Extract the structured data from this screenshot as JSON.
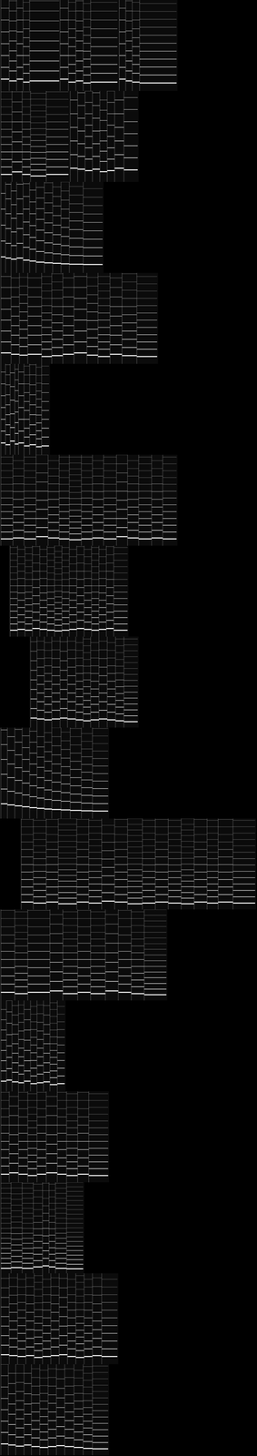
{
  "chart_data": [
    {
      "type": "spectrogram",
      "color": "#ffffff",
      "grid": false,
      "tick_labels": false,
      "xlim": [
        0,
        27.8
      ],
      "ylim": [
        0,
        4000
      ],
      "start": 0,
      "end": 19.2,
      "notes": [
        [
          0.1,
          1.0,
          520
        ],
        [
          1.0,
          1.8,
          440
        ],
        [
          1.8,
          2.5,
          520
        ],
        [
          2.5,
          3.2,
          390
        ],
        [
          3.2,
          6.4,
          440
        ],
        [
          6.5,
          7.4,
          520
        ],
        [
          7.4,
          8.2,
          390
        ],
        [
          8.2,
          9.0,
          440
        ],
        [
          9.0,
          9.8,
          350
        ],
        [
          9.8,
          12.7,
          390
        ],
        [
          12.9,
          13.6,
          520
        ],
        [
          13.6,
          14.3,
          440
        ],
        [
          14.3,
          15.1,
          390
        ],
        [
          15.1,
          19.1,
          350
        ]
      ]
    },
    {
      "type": "spectrogram",
      "color": "#ffffff",
      "grid": false,
      "tick_labels": false,
      "xlim": [
        0,
        27.8
      ],
      "ylim": [
        0,
        4000
      ],
      "start": 0,
      "end": 15.0,
      "notes": [
        [
          0.1,
          1.3,
          330
        ],
        [
          1.3,
          2.4,
          440
        ],
        [
          2.4,
          3.3,
          330
        ],
        [
          3.3,
          5.0,
          260
        ],
        [
          5.0,
          7.4,
          330
        ],
        [
          7.6,
          8.4,
          600
        ],
        [
          8.4,
          9.2,
          560
        ],
        [
          9.2,
          10.0,
          500
        ],
        [
          10.0,
          10.8,
          560
        ],
        [
          10.8,
          11.6,
          450
        ],
        [
          11.6,
          12.4,
          500
        ],
        [
          12.4,
          13.4,
          600
        ],
        [
          13.4,
          14.9,
          530
        ]
      ]
    },
    {
      "type": "spectrogram",
      "color": "#ffffff",
      "grid": false,
      "tick_labels": false,
      "xlim": [
        0,
        27.8
      ],
      "ylim": [
        0,
        4000
      ],
      "start": 0,
      "end": 11.2,
      "notes": [
        [
          0.1,
          0.6,
          700
        ],
        [
          0.6,
          1.2,
          650
        ],
        [
          1.2,
          1.8,
          600
        ],
        [
          1.8,
          2.5,
          650
        ],
        [
          2.5,
          3.2,
          560
        ],
        [
          3.2,
          3.9,
          520
        ],
        [
          3.9,
          4.8,
          470
        ],
        [
          4.8,
          5.7,
          440
        ],
        [
          5.7,
          6.6,
          420
        ],
        [
          6.6,
          7.5,
          400
        ],
        [
          7.5,
          9.0,
          380
        ],
        [
          9.0,
          11.1,
          370
        ]
      ]
    },
    {
      "type": "spectrogram",
      "color": "#ffffff",
      "grid": false,
      "tick_labels": false,
      "xlim": [
        0,
        27.8
      ],
      "ylim": [
        0,
        4000
      ],
      "start": 0,
      "end": 17.1,
      "notes": [
        [
          0.1,
          1.2,
          480
        ],
        [
          1.2,
          2.1,
          420
        ],
        [
          2.1,
          3.0,
          380
        ],
        [
          3.0,
          4.5,
          420
        ],
        [
          4.5,
          5.6,
          320
        ],
        [
          5.6,
          6.8,
          360
        ],
        [
          6.8,
          8.0,
          420
        ],
        [
          8.0,
          9.4,
          480
        ],
        [
          9.4,
          10.6,
          380
        ],
        [
          10.6,
          11.9,
          320
        ],
        [
          11.9,
          13.2,
          420
        ],
        [
          13.2,
          14.8,
          360
        ],
        [
          14.8,
          17.0,
          320
        ]
      ]
    },
    {
      "type": "spectrogram",
      "color": "#ffffff",
      "grid": false,
      "tick_labels": false,
      "xlim": [
        0,
        27.8
      ],
      "ylim": [
        0,
        4000
      ],
      "start": 0,
      "end": 5.4,
      "notes": [
        [
          0.1,
          0.6,
          520
        ],
        [
          0.6,
          1.1,
          440
        ],
        [
          1.1,
          1.6,
          600
        ],
        [
          1.6,
          2.0,
          470
        ],
        [
          2.0,
          2.6,
          520
        ],
        [
          2.6,
          3.2,
          390
        ],
        [
          3.2,
          3.9,
          440
        ],
        [
          3.9,
          4.5,
          350
        ],
        [
          4.5,
          5.3,
          390
        ]
      ]
    },
    {
      "type": "spectrogram",
      "color": "#ffffff",
      "grid": false,
      "tick_labels": false,
      "xlim": [
        0,
        27.8
      ],
      "ylim": [
        0,
        4000
      ],
      "start": 0,
      "end": 19.2,
      "notes": [
        [
          0.1,
          1.4,
          300
        ],
        [
          1.4,
          2.6,
          340
        ],
        [
          2.6,
          3.9,
          300
        ],
        [
          3.9,
          5.2,
          400
        ],
        [
          5.2,
          6.4,
          340
        ],
        [
          6.4,
          7.5,
          300
        ],
        [
          7.5,
          8.8,
          260
        ],
        [
          8.8,
          10.0,
          300
        ],
        [
          10.0,
          11.2,
          340
        ],
        [
          11.2,
          12.6,
          300
        ],
        [
          12.6,
          13.8,
          400
        ],
        [
          13.8,
          15.0,
          340
        ],
        [
          15.0,
          16.4,
          300
        ],
        [
          16.4,
          17.6,
          340
        ],
        [
          17.6,
          19.1,
          300
        ]
      ]
    },
    {
      "type": "spectrogram",
      "color": "#ffffff",
      "grid": false,
      "tick_labels": false,
      "xlim": [
        0,
        27.8
      ],
      "ylim": [
        0,
        4000
      ],
      "start": 1.0,
      "end": 13.9,
      "notes": [
        [
          1.1,
          1.9,
          280
        ],
        [
          1.9,
          2.7,
          320
        ],
        [
          2.7,
          3.5,
          280
        ],
        [
          3.5,
          4.3,
          360
        ],
        [
          4.3,
          5.1,
          320
        ],
        [
          5.1,
          5.9,
          280
        ],
        [
          5.9,
          6.7,
          250
        ],
        [
          6.7,
          7.5,
          280
        ],
        [
          7.5,
          8.3,
          320
        ],
        [
          8.3,
          9.1,
          360
        ],
        [
          9.1,
          9.9,
          320
        ],
        [
          9.9,
          10.7,
          280
        ],
        [
          10.7,
          11.5,
          320
        ],
        [
          11.5,
          12.3,
          360
        ],
        [
          12.3,
          13.8,
          280
        ]
      ]
    },
    {
      "type": "spectrogram",
      "color": "#ffffff",
      "grid": false,
      "tick_labels": false,
      "xlim": [
        0,
        27.8
      ],
      "ylim": [
        0,
        4000
      ],
      "start": 3.2,
      "end": 15.0,
      "notes": [
        [
          3.3,
          4.0,
          420
        ],
        [
          4.0,
          4.8,
          380
        ],
        [
          4.8,
          5.6,
          340
        ],
        [
          5.6,
          6.5,
          380
        ],
        [
          6.5,
          7.3,
          420
        ],
        [
          7.3,
          8.2,
          380
        ],
        [
          8.2,
          9.0,
          340
        ],
        [
          9.0,
          9.8,
          300
        ],
        [
          9.8,
          10.7,
          340
        ],
        [
          10.7,
          11.6,
          380
        ],
        [
          11.6,
          12.5,
          340
        ],
        [
          12.5,
          13.4,
          300
        ],
        [
          13.4,
          14.9,
          260
        ]
      ]
    },
    {
      "type": "spectrogram",
      "color": "#ffffff",
      "grid": false,
      "tick_labels": false,
      "xlim": [
        0,
        27.8
      ],
      "ylim": [
        0,
        4000
      ],
      "start": 0,
      "end": 11.8,
      "notes": [
        [
          0.1,
          0.8,
          650
        ],
        [
          0.8,
          1.6,
          600
        ],
        [
          1.6,
          2.4,
          560
        ],
        [
          2.4,
          3.2,
          520
        ],
        [
          3.2,
          4.0,
          480
        ],
        [
          4.0,
          4.8,
          450
        ],
        [
          4.8,
          5.6,
          420
        ],
        [
          5.6,
          6.6,
          400
        ],
        [
          6.6,
          7.6,
          380
        ],
        [
          7.6,
          8.8,
          360
        ],
        [
          8.8,
          10.0,
          340
        ],
        [
          10.0,
          11.7,
          330
        ]
      ]
    },
    {
      "type": "spectrogram",
      "color": "#ffffff",
      "grid": false,
      "tick_labels": false,
      "xlim": [
        0,
        27.8
      ],
      "ylim": [
        0,
        4000
      ],
      "start": 2.2,
      "end": 27.7,
      "notes": [
        [
          2.3,
          3.6,
          330
        ],
        [
          3.6,
          5.0,
          280
        ],
        [
          5.0,
          6.3,
          330
        ],
        [
          6.3,
          8.3,
          250
        ],
        [
          8.3,
          9.6,
          330
        ],
        [
          9.6,
          11.0,
          280
        ],
        [
          11.0,
          12.4,
          370
        ],
        [
          12.4,
          13.8,
          330
        ],
        [
          13.8,
          15.4,
          250
        ],
        [
          15.4,
          16.8,
          280
        ],
        [
          16.8,
          18.2,
          330
        ],
        [
          18.2,
          19.6,
          280
        ],
        [
          19.6,
          21.0,
          250
        ],
        [
          21.0,
          22.4,
          330
        ],
        [
          22.4,
          23.6,
          280
        ],
        [
          23.6,
          25.2,
          330
        ],
        [
          25.2,
          27.6,
          280
        ]
      ]
    },
    {
      "type": "spectrogram",
      "color": "#ffffff",
      "grid": false,
      "tick_labels": false,
      "xlim": [
        0,
        27.8
      ],
      "ylim": [
        0,
        4000
      ],
      "start": 0,
      "end": 18.1,
      "notes": [
        [
          0.1,
          1.6,
          360
        ],
        [
          1.6,
          3.0,
          300
        ],
        [
          3.0,
          5.4,
          360
        ],
        [
          5.4,
          6.8,
          420
        ],
        [
          6.8,
          8.4,
          300
        ],
        [
          8.4,
          9.8,
          360
        ],
        [
          9.8,
          11.4,
          300
        ],
        [
          11.4,
          12.8,
          420
        ],
        [
          12.8,
          14.2,
          360
        ],
        [
          14.2,
          15.6,
          300
        ],
        [
          15.6,
          18.0,
          250
        ]
      ]
    },
    {
      "type": "spectrogram",
      "color": "#ffffff",
      "grid": false,
      "tick_labels": false,
      "xlim": [
        0,
        27.8
      ],
      "ylim": [
        0,
        4000
      ],
      "start": 0,
      "end": 7.1,
      "notes": [
        [
          0.1,
          0.7,
          450
        ],
        [
          0.7,
          1.3,
          500
        ],
        [
          1.3,
          2.0,
          420
        ],
        [
          2.0,
          2.6,
          380
        ],
        [
          2.6,
          3.3,
          450
        ],
        [
          3.3,
          4.0,
          340
        ],
        [
          4.0,
          4.7,
          380
        ],
        [
          4.7,
          5.4,
          420
        ],
        [
          5.4,
          6.2,
          300
        ],
        [
          6.2,
          7.0,
          340
        ]
      ]
    },
    {
      "type": "spectrogram",
      "color": "#ffffff",
      "grid": false,
      "tick_labels": false,
      "xlim": [
        0,
        27.8
      ],
      "ylim": [
        0,
        4000
      ],
      "start": 0,
      "end": 11.8,
      "notes": [
        [
          0.1,
          1.0,
          360
        ],
        [
          1.0,
          2.0,
          420
        ],
        [
          2.0,
          3.0,
          360
        ],
        [
          3.0,
          4.0,
          300
        ],
        [
          4.0,
          5.0,
          360
        ],
        [
          5.0,
          6.2,
          420
        ],
        [
          6.2,
          7.2,
          360
        ],
        [
          7.2,
          8.4,
          300
        ],
        [
          8.4,
          9.6,
          360
        ],
        [
          9.6,
          11.7,
          300
        ]
      ]
    },
    {
      "type": "spectrogram",
      "color": "#ffffff",
      "grid": false,
      "tick_labels": false,
      "xlim": [
        0,
        27.8
      ],
      "ylim": [
        0,
        4000
      ],
      "start": 0,
      "end": 9.1,
      "notes": [
        [
          0.1,
          1.2,
          220
        ],
        [
          1.2,
          2.4,
          250
        ],
        [
          2.4,
          3.6,
          220
        ],
        [
          3.6,
          4.6,
          280
        ],
        [
          4.6,
          5.3,
          330
        ],
        [
          5.3,
          6.0,
          280
        ],
        [
          6.0,
          7.2,
          220
        ],
        [
          7.2,
          9.0,
          200
        ]
      ]
    },
    {
      "type": "spectrogram",
      "color": "#ffffff",
      "grid": false,
      "tick_labels": false,
      "xlim": [
        0,
        27.8
      ],
      "ylim": [
        0,
        4000
      ],
      "start": 0,
      "end": 12.8,
      "notes": [
        [
          0.1,
          1.0,
          420
        ],
        [
          1.0,
          1.9,
          380
        ],
        [
          1.9,
          2.8,
          340
        ],
        [
          2.8,
          3.7,
          380
        ],
        [
          3.7,
          4.6,
          300
        ],
        [
          4.6,
          5.5,
          340
        ],
        [
          5.5,
          6.4,
          380
        ],
        [
          6.4,
          7.3,
          420
        ],
        [
          7.3,
          8.2,
          340
        ],
        [
          8.2,
          9.1,
          300
        ],
        [
          9.1,
          10.0,
          340
        ],
        [
          10.0,
          11.0,
          380
        ],
        [
          11.0,
          12.7,
          340
        ]
      ]
    },
    {
      "type": "spectrogram",
      "color": "#ffffff",
      "grid": false,
      "tick_labels": false,
      "xlim": [
        0,
        27.8
      ],
      "ylim": [
        0,
        4000
      ],
      "start": 0,
      "end": 11.8,
      "notes": [
        [
          0.1,
          0.9,
          500
        ],
        [
          0.9,
          1.7,
          450
        ],
        [
          1.7,
          2.6,
          400
        ],
        [
          2.6,
          3.4,
          450
        ],
        [
          3.4,
          4.3,
          380
        ],
        [
          4.3,
          5.2,
          340
        ],
        [
          5.2,
          6.1,
          380
        ],
        [
          6.1,
          7.0,
          420
        ],
        [
          7.0,
          8.0,
          380
        ],
        [
          8.0,
          9.0,
          340
        ],
        [
          9.0,
          10.0,
          300
        ],
        [
          10.0,
          11.7,
          280
        ]
      ]
    }
  ]
}
